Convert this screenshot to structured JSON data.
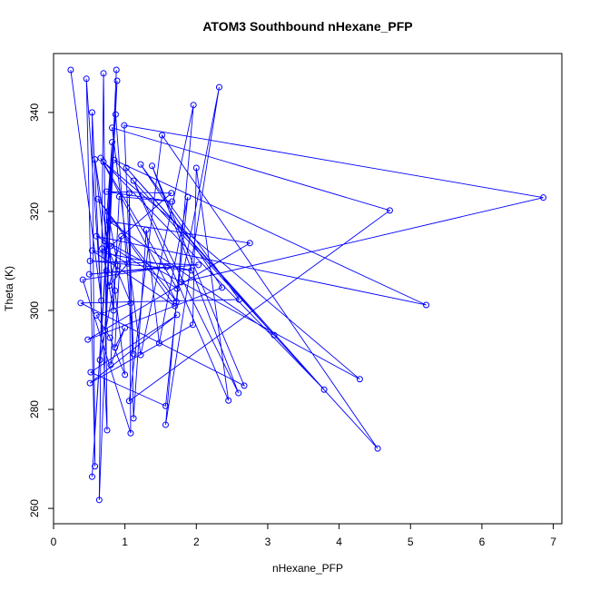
{
  "chart_data": {
    "type": "line",
    "title": "ATOM3 Southbound nHexane_PFP",
    "x_label": "nHexane_PFP",
    "y_label": "Theta (K)",
    "xlim": [
      0,
      7.12
    ],
    "ylim": [
      256.9,
      351.9
    ],
    "xticks": [
      0,
      1,
      2,
      3,
      4,
      5,
      6,
      7
    ],
    "yticks": [
      260,
      280,
      300,
      320,
      340
    ],
    "series": [
      {
        "color": "#0000ff",
        "x": [
          0.24,
          0.67,
          0.46,
          0.58,
          0.54,
          0.75,
          0.7,
          0.64,
          0.88,
          0.72,
          0.89,
          0.54,
          0.87,
          1.12,
          0.99,
          6.86,
          1.79,
          2.32,
          1.57,
          1.96,
          1.22,
          0.82,
          4.71,
          1.06,
          1.52,
          4.54,
          0.85,
          5.22,
          0.6,
          4.29,
          0.7,
          3.79,
          1.02,
          3.09,
          0.78,
          2.75,
          0.48,
          2.36,
          1.22,
          2.6,
          0.38,
          2.67,
          1.38,
          2.59,
          1.12,
          2.45,
          2.0,
          1.95,
          0.51,
          1.73,
          0.52,
          1.57,
          1.88,
          1.48,
          1.3,
          1.12,
          1.06,
          1.08,
          0.41,
          1.58,
          0.5,
          2.03,
          0.51,
          1.93,
          0.54,
          1.7,
          0.62,
          1.72,
          0.66,
          1.73,
          0.8,
          1.65,
          0.74,
          1.66,
          0.92,
          0.8,
          1.0,
          0.86,
          0.95,
          0.78,
          1.04,
          0.68,
          0.84,
          0.76,
          0.9,
          0.65,
          0.82,
          0.72,
          1.08,
          0.6,
          0.79,
          1.0,
          0.86,
          0.58,
          0.74
        ],
        "values": [
          348.6,
          302.0,
          346.8,
          268.5,
          340.0,
          275.8,
          347.9,
          261.7,
          348.6,
          296.0,
          346.4,
          266.4,
          339.6,
          291.2,
          337.4,
          322.8,
          305.7,
          345.1,
          276.9,
          341.5,
          291.0,
          336.9,
          320.2,
          281.7,
          335.4,
          272.1,
          330.4,
          301.1,
          315.0,
          286.1,
          330.0,
          284.0,
          328.8,
          295.0,
          318.0,
          313.6,
          294.1,
          304.6,
          329.5,
          302.2,
          301.5,
          284.8,
          329.2,
          283.3,
          326.2,
          281.8,
          328.8,
          297.1,
          285.3,
          299.1,
          287.5,
          280.7,
          322.9,
          293.4,
          316.3,
          278.2,
          323.7,
          275.2,
          306.2,
          308.8,
          307.3,
          309.2,
          310.0,
          308.1,
          312.1,
          300.9,
          322.5,
          301.8,
          330.8,
          304.4,
          313.0,
          323.7,
          324.0,
          322.0,
          323.0,
          289.0,
          296.5,
          292.5,
          315.0,
          305.0,
          309.5,
          312.5,
          300.0,
          320.0,
          309.0,
          290.0,
          334.0,
          314.0,
          301.5,
          299.0,
          294.5,
          287.0,
          304.0,
          330.5,
          308.0
        ]
      }
    ]
  }
}
